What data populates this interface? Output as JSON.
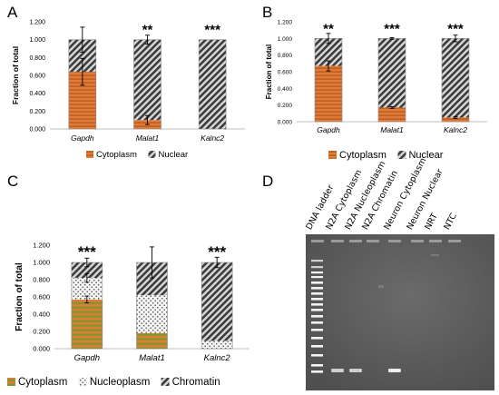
{
  "panels": {
    "A": "A",
    "B": "B",
    "C": "C",
    "D": "D"
  },
  "colors": {
    "cytoplasm_stripe_a": "#e07b39",
    "cytoplasm_stripe_b": "#b85a1c",
    "cytoplasm_c_a": "#7a9a2a",
    "cytoplasm_c_b": "#e07b39",
    "nuclear_hatch_dark": "#3c3c3c",
    "nuclear_hatch_light": "#d9d9d9",
    "nucleoplasm_dot": "#555555",
    "gel_background": "#5e5e5e"
  },
  "chart_data": [
    {
      "panel": "A",
      "type": "bar",
      "stacked": true,
      "categories": [
        "Gapdh",
        "Malat1",
        "Kalnc2"
      ],
      "series": [
        {
          "name": "Cytoplasm",
          "values": [
            0.64,
            0.1,
            0.0
          ],
          "error": [
            0.15,
            0.05,
            0.0
          ]
        },
        {
          "name": "Nuclear",
          "values": [
            0.36,
            0.9,
            1.0
          ],
          "error": [
            0.14,
            0.05,
            0.0
          ]
        }
      ],
      "significance": [
        "",
        "**",
        "***"
      ],
      "ylabel": "Fraction of total",
      "ylim": [
        0,
        1.2
      ],
      "yticks": [
        "0.000",
        "0.200",
        "0.400",
        "0.600",
        "0.800",
        "1.000",
        "1.200"
      ],
      "legend_position": "bottom"
    },
    {
      "panel": "B",
      "type": "bar",
      "stacked": true,
      "categories": [
        "Gapdh",
        "Malat1",
        "Kalnc2"
      ],
      "series": [
        {
          "name": "Cytoplasm",
          "values": [
            0.67,
            0.17,
            0.05
          ],
          "error": [
            0.06,
            0.01,
            0.01
          ]
        },
        {
          "name": "Nuclear",
          "values": [
            0.33,
            0.83,
            0.95
          ],
          "error": [
            0.06,
            0.01,
            0.04
          ]
        }
      ],
      "significance": [
        "**",
        "***",
        "***"
      ],
      "ylabel": "Fraction of total",
      "ylim": [
        0,
        1.2
      ],
      "yticks": [
        "0.000",
        "0.200",
        "0.400",
        "0.600",
        "0.800",
        "1.000",
        "1.200"
      ],
      "legend_position": "bottom"
    },
    {
      "panel": "C",
      "type": "bar",
      "stacked": true,
      "categories": [
        "Gapdh",
        "Malat1",
        "Kalnc2"
      ],
      "series": [
        {
          "name": "Cytoplasm",
          "values": [
            0.57,
            0.18,
            0.0
          ],
          "error": [
            0.04,
            0.0,
            0.0
          ]
        },
        {
          "name": "Nucleoplasm",
          "values": [
            0.25,
            0.44,
            0.09
          ],
          "error": [
            0.05,
            0.0,
            0.0
          ]
        },
        {
          "name": "Chromatin",
          "values": [
            0.18,
            0.38,
            0.91
          ],
          "error": [
            0.05,
            0.18,
            0.06
          ]
        }
      ],
      "significance": [
        "***",
        "",
        "***"
      ],
      "ylabel": "Fraction of total",
      "ylim": [
        0,
        1.2
      ],
      "yticks": [
        "0.000",
        "0.200",
        "0.400",
        "0.600",
        "0.800",
        "1.000",
        "1.200"
      ],
      "legend_position": "bottom"
    }
  ],
  "gel": {
    "lane_labels": [
      "DNA ladder",
      "N2A Cytoplasm",
      "N2A Nucleoplasm",
      "N2A Chromatin",
      "Neuron Cytoplasm",
      "Neuron  Nuclear",
      "NRT",
      "NTC"
    ],
    "bright_band_lanes": [
      1,
      2,
      4
    ]
  }
}
